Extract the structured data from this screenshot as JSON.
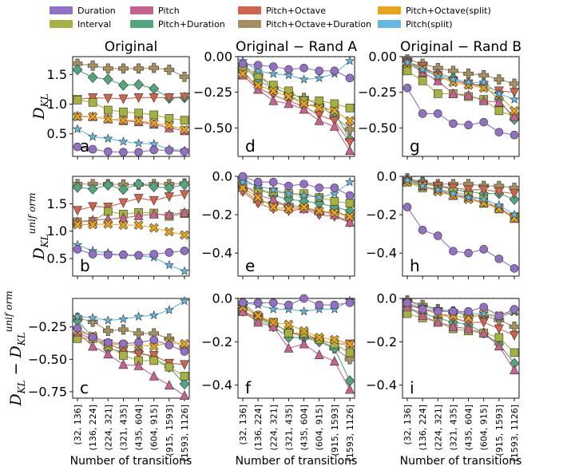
{
  "chart_data": {
    "type": "line",
    "categories": [
      "(32, 136]",
      "(136, 224]",
      "(224, 321]",
      "(321, 435]",
      "(435, 604]",
      "(604, 915]",
      "(915, 1593]",
      "(1593, 1126]"
    ],
    "xlabel": "Number of transitions",
    "column_titles": [
      "Original",
      "Original − Rand A",
      "Original − Rand B"
    ],
    "legend": [
      {
        "key": "duration",
        "label": "Duration",
        "color": "#9270c4",
        "marker": "circle"
      },
      {
        "key": "interval",
        "label": "Interval",
        "color": "#a7b13f",
        "marker": "square"
      },
      {
        "key": "pitch",
        "label": "Pitch",
        "color": "#c7628f",
        "marker": "triangle-up"
      },
      {
        "key": "pitch_duration",
        "label": "Pitch+Duration",
        "color": "#52a57e",
        "marker": "diamond"
      },
      {
        "key": "pitch_octave",
        "label": "Pitch+Octave",
        "color": "#d0634b",
        "marker": "triangle-down"
      },
      {
        "key": "pitch_octave_duration",
        "label": "Pitch+Octave+Duration",
        "color": "#a58f5e",
        "marker": "plus"
      },
      {
        "key": "pitch_octave_split",
        "label": "Pitch+Octave(split)",
        "color": "#e8a41c",
        "marker": "x"
      },
      {
        "key": "pitch_split",
        "label": "Pitch(split)",
        "color": "#63b7e0",
        "marker": "star"
      }
    ],
    "panels": [
      {
        "letter": "a",
        "row": 0,
        "col": 0,
        "ylabel_main": "D",
        "ylabel_sub": "KL",
        "ylim": [
          0.12,
          1.8
        ],
        "yticks": [
          0.5,
          1.0,
          1.5
        ],
        "ytick_labels": [
          "0.5",
          "1.0",
          "1.5"
        ],
        "zero_line": false,
        "series": {
          "duration": [
            0.28,
            0.24,
            0.2,
            0.19,
            0.19,
            0.23,
            0.22,
            0.2
          ],
          "interval": [
            1.07,
            1.03,
            0.9,
            0.87,
            0.85,
            0.82,
            0.76,
            0.73
          ],
          "pitch": [
            0.8,
            0.79,
            0.75,
            0.72,
            0.7,
            0.66,
            0.6,
            0.55
          ],
          "pitch_duration": [
            1.58,
            1.45,
            1.42,
            1.32,
            1.33,
            1.26,
            1.1,
            1.11
          ],
          "pitch_octave": [
            1.08,
            1.11,
            1.1,
            1.09,
            1.11,
            1.11,
            1.11,
            1.12
          ],
          "pitch_octave_duration": [
            1.68,
            1.65,
            1.6,
            1.6,
            1.6,
            1.61,
            1.58,
            1.46
          ],
          "pitch_octave_split": [
            0.79,
            0.79,
            0.75,
            0.73,
            0.72,
            0.68,
            0.64,
            0.57
          ],
          "pitch_split": [
            0.58,
            0.45,
            0.42,
            0.37,
            0.34,
            0.33,
            0.24,
            0.22
          ]
        }
      },
      {
        "letter": "d",
        "row": 0,
        "col": 1,
        "ylim": [
          -0.7,
          0.0
        ],
        "yticks": [
          0.0,
          -0.25,
          -0.5
        ],
        "ytick_labels": [
          "0.00",
          "−0.25",
          "−0.50"
        ],
        "zero_line": true,
        "series": {
          "duration": [
            -0.05,
            -0.06,
            -0.07,
            -0.09,
            -0.08,
            -0.1,
            -0.1,
            -0.15
          ],
          "interval": [
            -0.09,
            -0.13,
            -0.2,
            -0.24,
            -0.31,
            -0.31,
            -0.33,
            -0.36
          ],
          "pitch": [
            -0.13,
            -0.23,
            -0.31,
            -0.33,
            -0.37,
            -0.45,
            -0.49,
            -0.66
          ],
          "pitch_duration": [
            -0.05,
            -0.17,
            -0.22,
            -0.26,
            -0.34,
            -0.34,
            -0.39,
            -0.58
          ],
          "pitch_octave": [
            -0.1,
            -0.22,
            -0.27,
            -0.31,
            -0.35,
            -0.41,
            -0.45,
            -0.6
          ],
          "pitch_octave_duration": [
            -0.06,
            -0.13,
            -0.22,
            -0.26,
            -0.29,
            -0.34,
            -0.42,
            -0.51
          ],
          "pitch_octave_split": [
            -0.12,
            -0.2,
            -0.24,
            -0.28,
            -0.33,
            -0.36,
            -0.38,
            -0.45
          ],
          "pitch_split": [
            -0.03,
            -0.1,
            -0.12,
            -0.13,
            -0.16,
            -0.15,
            -0.12,
            -0.03
          ]
        }
      },
      {
        "letter": "g",
        "row": 0,
        "col": 2,
        "ylim": [
          -0.7,
          0.0
        ],
        "yticks": [
          0.0,
          -0.25,
          -0.5
        ],
        "ytick_labels": [
          "0.00",
          "−0.25",
          "−0.50"
        ],
        "zero_line": true,
        "series": {
          "duration": [
            -0.22,
            -0.4,
            -0.4,
            -0.47,
            -0.48,
            -0.46,
            -0.53,
            -0.55
          ],
          "interval": [
            -0.1,
            -0.17,
            -0.26,
            -0.26,
            -0.28,
            -0.3,
            -0.38,
            -0.42
          ],
          "pitch": [
            -0.04,
            -0.11,
            -0.17,
            -0.26,
            -0.27,
            -0.31,
            -0.32,
            -0.42
          ],
          "pitch_duration": [
            -0.03,
            -0.09,
            -0.12,
            -0.15,
            -0.19,
            -0.2,
            -0.3,
            -0.44
          ],
          "pitch_octave": [
            -0.04,
            -0.07,
            -0.13,
            -0.17,
            -0.19,
            -0.21,
            -0.24,
            -0.25
          ],
          "pitch_octave_duration": [
            -0.02,
            -0.05,
            -0.08,
            -0.1,
            -0.12,
            -0.13,
            -0.16,
            -0.19
          ],
          "pitch_octave_split": [
            -0.05,
            -0.09,
            -0.14,
            -0.18,
            -0.2,
            -0.22,
            -0.27,
            -0.38
          ],
          "pitch_split": [
            -0.04,
            -0.09,
            -0.14,
            -0.16,
            -0.18,
            -0.18,
            -0.26,
            -0.3
          ]
        }
      },
      {
        "letter": "b",
        "row": 1,
        "col": 0,
        "ylabel_main": "D",
        "ylabel_sub": "KL",
        "ylabel_sup": "unif orm",
        "ylim": [
          0.18,
          2.0
        ],
        "yticks": [
          0.5,
          1.0,
          1.5
        ],
        "ytick_labels": [
          "0.5",
          "1.0",
          "1.5"
        ],
        "zero_line": false,
        "series": {
          "duration": [
            0.67,
            0.58,
            0.57,
            0.57,
            0.56,
            0.58,
            0.61,
            0.64
          ],
          "interval": [
            1.17,
            1.18,
            1.36,
            1.31,
            1.34,
            1.33,
            1.27,
            1.32
          ],
          "pitch": [
            1.17,
            1.2,
            1.22,
            1.24,
            1.28,
            1.31,
            1.3,
            1.34
          ],
          "pitch_duration": [
            1.8,
            1.77,
            1.84,
            1.76,
            1.86,
            1.81,
            1.79,
            1.85
          ],
          "pitch_octave": [
            1.38,
            1.45,
            1.44,
            1.52,
            1.6,
            1.56,
            1.63,
            1.67
          ],
          "pitch_octave_duration": [
            1.86,
            1.86,
            1.86,
            1.85,
            1.85,
            1.86,
            1.86,
            1.87
          ],
          "pitch_octave_split": [
            1.12,
            1.12,
            1.13,
            1.11,
            1.11,
            1.06,
            0.99,
            0.93
          ],
          "pitch_split": [
            0.75,
            0.64,
            0.6,
            0.56,
            0.55,
            0.52,
            0.38,
            0.27
          ]
        }
      },
      {
        "letter": "e",
        "row": 1,
        "col": 1,
        "ylim": [
          -0.52,
          0.0
        ],
        "yticks": [
          0.0,
          -0.2,
          -0.4
        ],
        "ytick_labels": [
          "0.0",
          "−0.2",
          "−0.4"
        ],
        "zero_line": true,
        "series": {
          "duration": [
            0.0,
            -0.03,
            -0.03,
            -0.05,
            -0.04,
            -0.06,
            -0.06,
            -0.1
          ],
          "interval": [
            -0.05,
            -0.08,
            -0.08,
            -0.09,
            -0.09,
            -0.11,
            -0.13,
            -0.14
          ],
          "pitch": [
            -0.04,
            -0.1,
            -0.12,
            -0.16,
            -0.17,
            -0.18,
            -0.2,
            -0.24
          ],
          "pitch_duration": [
            -0.01,
            -0.06,
            -0.1,
            -0.12,
            -0.13,
            -0.14,
            -0.16,
            -0.18
          ],
          "pitch_octave": [
            -0.08,
            -0.14,
            -0.17,
            -0.18,
            -0.17,
            -0.2,
            -0.21,
            -0.24
          ],
          "pitch_octave_duration": [
            -0.07,
            -0.13,
            -0.14,
            -0.15,
            -0.16,
            -0.19,
            -0.18,
            -0.21
          ],
          "pitch_octave_split": [
            -0.06,
            -0.11,
            -0.16,
            -0.17,
            -0.16,
            -0.18,
            -0.19,
            -0.21
          ],
          "pitch_split": [
            -0.03,
            -0.05,
            -0.07,
            -0.09,
            -0.1,
            -0.11,
            -0.09,
            -0.03
          ]
        }
      },
      {
        "letter": "h",
        "row": 1,
        "col": 2,
        "ylim": [
          -0.52,
          0.0
        ],
        "yticks": [
          0.0,
          -0.2,
          -0.4
        ],
        "ytick_labels": [
          "0.0",
          "−0.2",
          "−0.4"
        ],
        "zero_line": true,
        "series": {
          "duration": [
            -0.16,
            -0.28,
            -0.31,
            -0.39,
            -0.4,
            -0.38,
            -0.43,
            -0.48
          ],
          "interval": [
            -0.03,
            -0.06,
            -0.07,
            -0.08,
            -0.1,
            -0.12,
            -0.17,
            -0.21
          ],
          "pitch": [
            -0.02,
            -0.05,
            -0.07,
            -0.1,
            -0.11,
            -0.14,
            -0.16,
            -0.22
          ],
          "pitch_duration": [
            -0.02,
            -0.03,
            -0.05,
            -0.07,
            -0.08,
            -0.09,
            -0.09,
            -0.12
          ],
          "pitch_octave": [
            -0.02,
            -0.04,
            -0.05,
            -0.06,
            -0.07,
            -0.07,
            -0.08,
            -0.09
          ],
          "pitch_octave_duration": [
            -0.01,
            -0.03,
            -0.04,
            -0.04,
            -0.04,
            -0.05,
            -0.05,
            -0.06
          ],
          "pitch_octave_split": [
            -0.03,
            -0.05,
            -0.08,
            -0.1,
            -0.12,
            -0.14,
            -0.17,
            -0.22
          ],
          "pitch_split": [
            -0.02,
            -0.05,
            -0.07,
            -0.09,
            -0.11,
            -0.12,
            -0.15,
            -0.2
          ]
        }
      },
      {
        "letter": "c",
        "row": 2,
        "col": 0,
        "ylabel_main": "D",
        "ylabel_sub": "KL",
        "ylabel_minus": " − D",
        "ylabel_sub2": "KL",
        "ylabel_sup": "unif orm",
        "ylim": [
          -0.8,
          -0.03
        ],
        "yticks": [
          -0.25,
          -0.5,
          -0.75
        ],
        "ytick_labels": [
          "−0.25",
          "−0.50",
          "−0.75"
        ],
        "zero_line": false,
        "series": {
          "duration": [
            -0.26,
            -0.33,
            -0.37,
            -0.38,
            -0.37,
            -0.35,
            -0.39,
            -0.44
          ],
          "interval": [
            -0.34,
            -0.34,
            -0.4,
            -0.47,
            -0.51,
            -0.51,
            -0.56,
            -0.63
          ],
          "pitch": [
            -0.29,
            -0.4,
            -0.46,
            -0.54,
            -0.55,
            -0.63,
            -0.7,
            -0.78
          ],
          "pitch_duration": [
            -0.2,
            -0.33,
            -0.42,
            -0.44,
            -0.44,
            -0.49,
            -0.56,
            -0.69
          ],
          "pitch_octave": [
            -0.29,
            -0.35,
            -0.38,
            -0.43,
            -0.46,
            -0.47,
            -0.53,
            -0.54
          ],
          "pitch_octave_duration": [
            -0.18,
            -0.21,
            -0.28,
            -0.27,
            -0.3,
            -0.3,
            -0.34,
            -0.41
          ],
          "pitch_octave_split": [
            -0.28,
            -0.32,
            -0.38,
            -0.39,
            -0.39,
            -0.4,
            -0.37,
            -0.38
          ],
          "pitch_split": [
            -0.17,
            -0.18,
            -0.2,
            -0.19,
            -0.17,
            -0.16,
            -0.12,
            -0.05
          ]
        }
      },
      {
        "letter": "f",
        "row": 2,
        "col": 1,
        "ylim": [
          -0.46,
          0.0
        ],
        "yticks": [
          0.0,
          -0.2,
          -0.4
        ],
        "ytick_labels": [
          "0.0",
          "−0.2",
          "−0.4"
        ],
        "zero_line": true,
        "series": {
          "duration": [
            -0.02,
            -0.02,
            -0.02,
            -0.03,
            0.0,
            -0.03,
            -0.03,
            -0.02
          ],
          "interval": [
            -0.06,
            -0.1,
            -0.11,
            -0.16,
            -0.16,
            -0.19,
            -0.21,
            -0.25
          ],
          "pitch": [
            -0.06,
            -0.11,
            -0.13,
            -0.23,
            -0.21,
            -0.26,
            -0.29,
            -0.42
          ],
          "pitch_duration": [
            -0.03,
            -0.09,
            -0.13,
            -0.18,
            -0.18,
            -0.2,
            -0.23,
            -0.38
          ],
          "pitch_octave": [
            -0.06,
            -0.09,
            -0.11,
            -0.16,
            -0.17,
            -0.19,
            -0.21,
            -0.21
          ],
          "pitch_octave_duration": [
            -0.02,
            -0.08,
            -0.12,
            -0.15,
            -0.18,
            -0.19,
            -0.23,
            -0.28
          ],
          "pitch_octave_split": [
            -0.04,
            -0.08,
            -0.11,
            -0.12,
            -0.15,
            -0.18,
            -0.19,
            -0.21
          ],
          "pitch_split": [
            -0.02,
            -0.03,
            -0.05,
            -0.05,
            -0.06,
            -0.05,
            -0.05,
            -0.01
          ]
        }
      },
      {
        "letter": "i",
        "row": 2,
        "col": 2,
        "ylim": [
          -0.46,
          0.0
        ],
        "yticks": [
          0.0,
          -0.2,
          -0.4
        ],
        "ytick_labels": [
          "0.0",
          "−0.2",
          "−0.4"
        ],
        "zero_line": true,
        "series": {
          "duration": [
            -0.02,
            -0.05,
            -0.06,
            -0.06,
            -0.06,
            -0.04,
            -0.08,
            -0.05
          ],
          "interval": [
            -0.07,
            -0.09,
            -0.11,
            -0.14,
            -0.15,
            -0.16,
            -0.18,
            -0.25
          ],
          "pitch": [
            -0.04,
            -0.08,
            -0.11,
            -0.13,
            -0.14,
            -0.16,
            -0.22,
            -0.33
          ],
          "pitch_duration": [
            -0.04,
            -0.07,
            -0.09,
            -0.11,
            -0.12,
            -0.16,
            -0.21,
            -0.3
          ],
          "pitch_octave": [
            -0.03,
            -0.05,
            -0.07,
            -0.09,
            -0.11,
            -0.11,
            -0.14,
            -0.17
          ],
          "pitch_octave_duration": [
            -0.01,
            -0.03,
            -0.05,
            -0.06,
            -0.08,
            -0.08,
            -0.1,
            -0.13
          ],
          "pitch_octave_split": [
            -0.02,
            -0.05,
            -0.07,
            -0.08,
            -0.09,
            -0.07,
            -0.08,
            -0.06
          ],
          "pitch_split": [
            -0.01,
            -0.04,
            -0.05,
            -0.06,
            -0.07,
            -0.07,
            -0.09,
            -0.06
          ]
        }
      }
    ]
  }
}
